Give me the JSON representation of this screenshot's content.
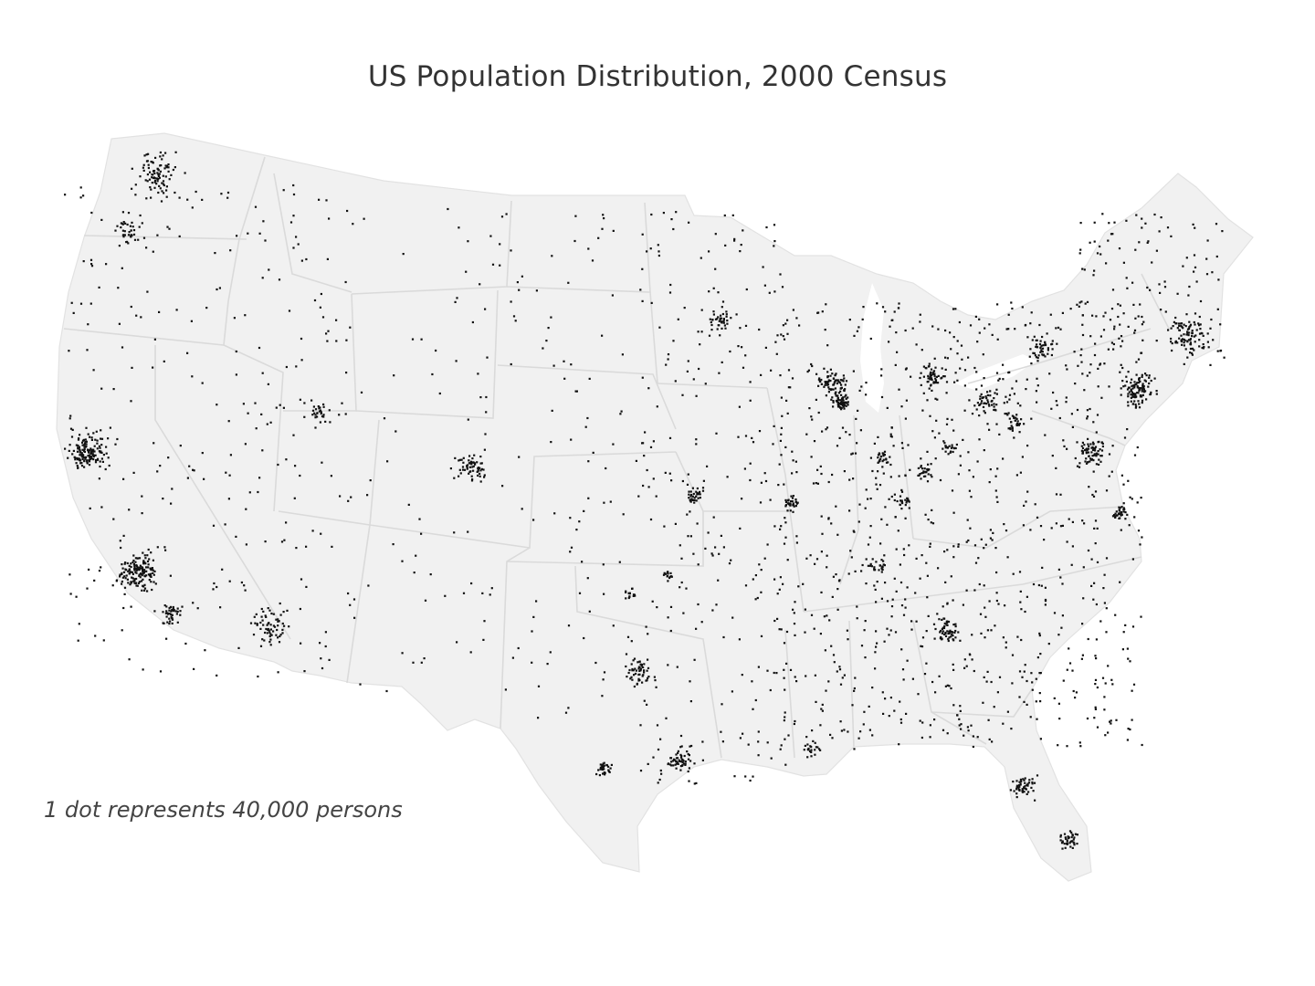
{
  "title": "US Population Distribution, 2000 Census",
  "note": "1 dot represents 40,000 persons",
  "colors": {
    "land": "#f1f1f1",
    "borders": "#dadada",
    "dots": "#111111",
    "text": "#333333"
  }
}
